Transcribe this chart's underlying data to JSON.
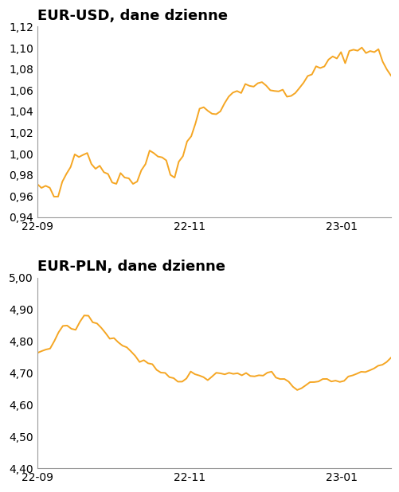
{
  "title1": "EUR-USD, dane dzienne",
  "title2": "EUR-PLN, dane dzienne",
  "line_color": "#F5A623",
  "background_color": "#FFFFFF",
  "eurusd_ylim": [
    0.94,
    1.12
  ],
  "eurusd_yticks": [
    0.94,
    0.96,
    0.98,
    1.0,
    1.02,
    1.04,
    1.06,
    1.08,
    1.1,
    1.12
  ],
  "eurpln_ylim": [
    4.4,
    5.0
  ],
  "eurpln_yticks": [
    4.4,
    4.5,
    4.6,
    4.7,
    4.8,
    4.9,
    5.0
  ],
  "xtick_labels": [
    "22-09",
    "22-11",
    "23-01"
  ],
  "xtick_positions": [
    0.0,
    0.43,
    0.86
  ],
  "title_fontsize": 13,
  "tick_fontsize": 10,
  "line_width": 1.4,
  "spine_color": "#999999"
}
